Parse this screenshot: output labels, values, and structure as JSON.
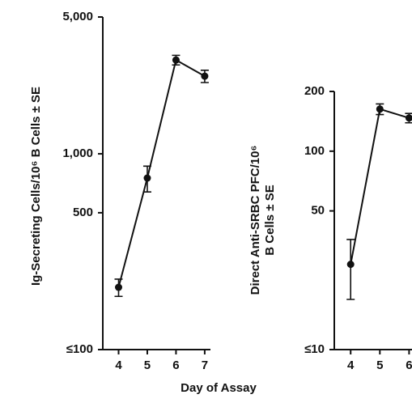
{
  "chart_data": [
    {
      "type": "line",
      "ylabel": "Ig-Secreting Cells/10⁶ B Cells ± SE",
      "xlabel": "Day of Assay",
      "x": [
        4,
        5,
        6,
        7
      ],
      "values": [
        208,
        752,
        3015,
        2493
      ],
      "errors": [
        21,
        113,
        170,
        180
      ],
      "color": "#111111",
      "xlim": [
        3.45,
        7.2
      ],
      "xticks": [
        4,
        5,
        6,
        7
      ],
      "ylim": [
        100,
        5000
      ],
      "log_y": true,
      "yticks": [
        {
          "value": 100,
          "label": "≤100"
        },
        500,
        {
          "value": 1000,
          "label": "1,000"
        },
        {
          "value": 5000,
          "label": "5,000"
        }
      ]
    },
    {
      "type": "line",
      "ylabel": [
        "Direct Anti-SRBC PFC/10⁶",
        "B Cells ± SE"
      ],
      "x": [
        4,
        5,
        6
      ],
      "values": [
        26.9,
        163,
        147
      ],
      "errors": [
        9,
        10,
        8
      ],
      "color": "#111111",
      "xlim": [
        3.44,
        6.1
      ],
      "xticks": [
        4,
        5,
        6
      ],
      "ylim": [
        10,
        200
      ],
      "log_y": true,
      "yticks": [
        {
          "value": 10,
          "label": "≤10"
        },
        50,
        100,
        200
      ]
    }
  ]
}
